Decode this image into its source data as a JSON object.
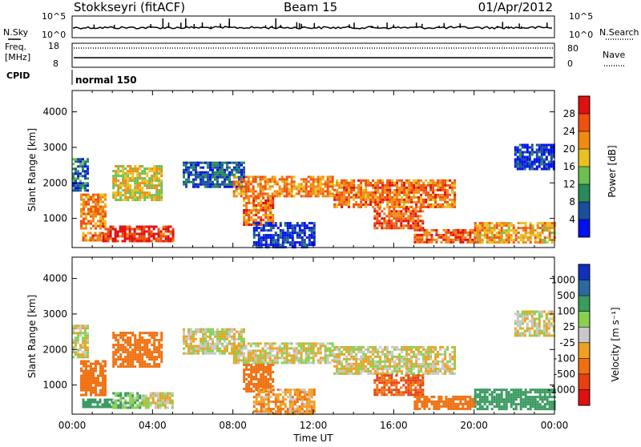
{
  "header": {
    "title": "Stokkseyri (fitACF)",
    "beam": "Beam 15",
    "date": "01/Apr/2012"
  },
  "nsky_panel": {
    "left_label": "N.Sky",
    "right_label": "N.Search",
    "left_ticks": [
      "10^5",
      "10^0"
    ],
    "right_ticks": [
      "10^5",
      "10^0"
    ]
  },
  "freq_panel": {
    "left_label_1": "Freq.",
    "left_label_2": "[MHz]",
    "right_label": "Nave",
    "left_ticks": [
      "18",
      "8"
    ],
    "right_ticks": [
      "80",
      "0"
    ]
  },
  "cpid": {
    "label": "CPID",
    "mode": "normal 150"
  },
  "colors": {
    "power_scale": [
      "#0010f0",
      "#1a4fa0",
      "#2a8a5a",
      "#6cc050",
      "#e8c020",
      "#f08a10",
      "#f05010",
      "#e01010"
    ],
    "velocity_scale": [
      "#1030c0",
      "#2a6aa0",
      "#3a9a60",
      "#8ad050",
      "#c8c8c8",
      "#f0a020",
      "#f07010",
      "#e84010",
      "#e01010"
    ]
  },
  "chart_data": [
    {
      "type": "heatmap",
      "panel": "power",
      "title": "",
      "xlabel": "",
      "ylabel": "Slant Range [km]",
      "x_ticks": [
        "00:00",
        "04:00",
        "08:00",
        "12:00",
        "16:00",
        "20:00",
        "00:00"
      ],
      "y_ticks": [
        1000,
        2000,
        3000,
        4000
      ],
      "xlim": [
        0,
        24
      ],
      "ylim": [
        180,
        4600
      ],
      "colorbar": {
        "label": "Power [dB]",
        "ticks": [
          4,
          8,
          12,
          16,
          20,
          24,
          28
        ],
        "range": [
          0,
          32
        ]
      },
      "regions": [
        {
          "t0": 0.0,
          "t1": 0.8,
          "r0": 1800,
          "r1": 2700,
          "level": 0.25
        },
        {
          "t0": 0.4,
          "t1": 1.6,
          "r0": 700,
          "r1": 1700,
          "level": 0.7
        },
        {
          "t0": 0.5,
          "t1": 1.5,
          "r0": 380,
          "r1": 620,
          "level": 0.75
        },
        {
          "t0": 1.5,
          "t1": 5.0,
          "r0": 350,
          "r1": 800,
          "level": 0.9
        },
        {
          "t0": 2.0,
          "t1": 4.5,
          "r0": 1500,
          "r1": 2500,
          "level": 0.55
        },
        {
          "t0": 5.5,
          "t1": 8.5,
          "r0": 1900,
          "r1": 2600,
          "level": 0.2
        },
        {
          "t0": 8.0,
          "t1": 13.0,
          "r0": 1600,
          "r1": 2200,
          "level": 0.7
        },
        {
          "t0": 8.5,
          "t1": 10.0,
          "r0": 850,
          "r1": 1600,
          "level": 0.75
        },
        {
          "t0": 9.0,
          "t1": 12.0,
          "r0": 200,
          "r1": 900,
          "level": 0.1
        },
        {
          "t0": 13.0,
          "t1": 19.0,
          "r0": 1350,
          "r1": 2100,
          "level": 0.75
        },
        {
          "t0": 15.0,
          "t1": 17.5,
          "r0": 700,
          "r1": 1300,
          "level": 0.8
        },
        {
          "t0": 17.0,
          "t1": 20.0,
          "r0": 300,
          "r1": 700,
          "level": 0.8
        },
        {
          "t0": 20.0,
          "t1": 24.0,
          "r0": 300,
          "r1": 900,
          "level": 0.65
        },
        {
          "t0": 22.0,
          "t1": 24.0,
          "r0": 2400,
          "r1": 3100,
          "level": 0.1
        }
      ]
    },
    {
      "type": "heatmap",
      "panel": "velocity",
      "title": "",
      "xlabel": "Time UT",
      "ylabel": "Slant Range [km]",
      "x_ticks": [
        "00:00",
        "04:00",
        "08:00",
        "12:00",
        "16:00",
        "20:00",
        "00:00"
      ],
      "y_ticks": [
        1000,
        2000,
        3000,
        4000
      ],
      "xlim": [
        0,
        24
      ],
      "ylim": [
        180,
        4600
      ],
      "colorbar": {
        "label": "Velocity [m s⁻¹]",
        "ticks": [
          1000,
          500,
          100,
          25,
          -25,
          -100,
          -500,
          -1000
        ]
      },
      "regions": [
        {
          "t0": 0.0,
          "t1": 0.8,
          "r0": 1800,
          "r1": 2700,
          "velocity": 0
        },
        {
          "t0": 0.4,
          "t1": 1.6,
          "r0": 700,
          "r1": 1700,
          "velocity": -400
        },
        {
          "t0": 0.5,
          "t1": 2.0,
          "r0": 380,
          "r1": 620,
          "velocity": 300
        },
        {
          "t0": 2.0,
          "t1": 3.5,
          "r0": 350,
          "r1": 800,
          "velocity": 80
        },
        {
          "t0": 3.5,
          "t1": 5.0,
          "r0": 350,
          "r1": 800,
          "velocity": 0
        },
        {
          "t0": 2.0,
          "t1": 4.5,
          "r0": 1500,
          "r1": 2500,
          "velocity": -300
        },
        {
          "t0": 5.5,
          "t1": 8.5,
          "r0": 1900,
          "r1": 2600,
          "velocity": 0
        },
        {
          "t0": 8.0,
          "t1": 13.0,
          "r0": 1600,
          "r1": 2200,
          "velocity": 0
        },
        {
          "t0": 8.5,
          "t1": 10.0,
          "r0": 850,
          "r1": 1600,
          "velocity": -300
        },
        {
          "t0": 9.0,
          "t1": 12.0,
          "r0": 200,
          "r1": 900,
          "velocity": -80
        },
        {
          "t0": 13.0,
          "t1": 19.0,
          "r0": 1350,
          "r1": 2100,
          "velocity": 0
        },
        {
          "t0": 15.0,
          "t1": 17.5,
          "r0": 700,
          "r1": 1300,
          "velocity": -500
        },
        {
          "t0": 17.0,
          "t1": 20.0,
          "r0": 300,
          "r1": 700,
          "velocity": -200
        },
        {
          "t0": 20.0,
          "t1": 24.0,
          "r0": 300,
          "r1": 900,
          "velocity": 200
        },
        {
          "t0": 22.0,
          "t1": 24.0,
          "r0": 2400,
          "r1": 3100,
          "velocity": 0
        }
      ]
    }
  ]
}
